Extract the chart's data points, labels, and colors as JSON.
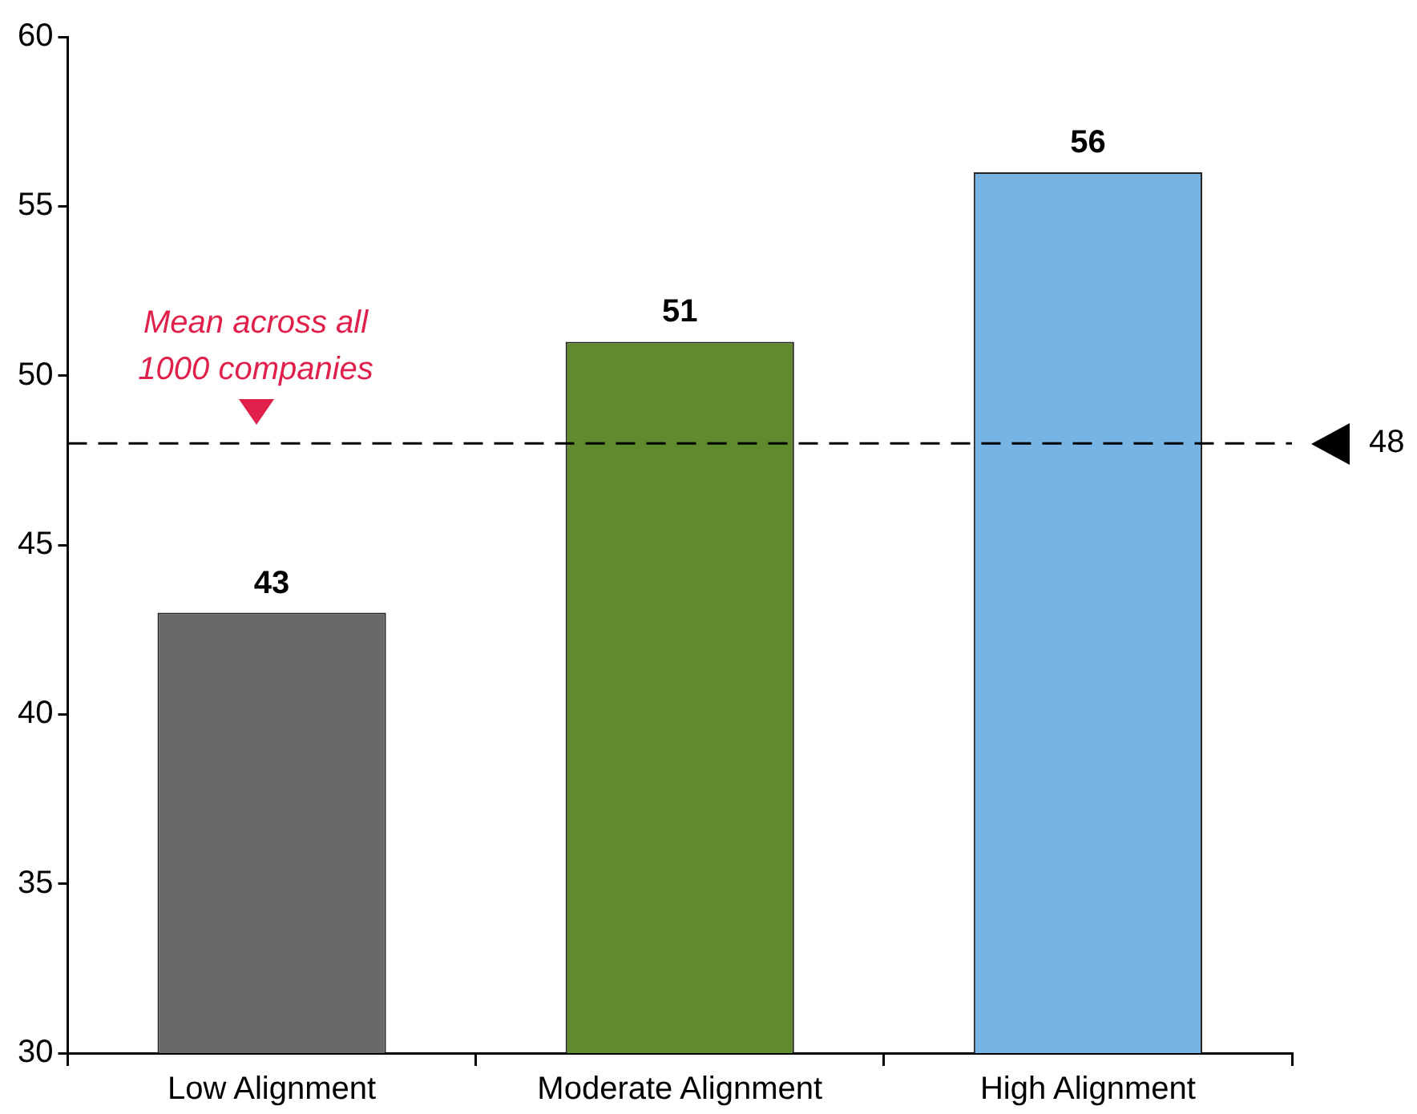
{
  "chart_data": {
    "type": "bar",
    "categories": [
      "Low Alignment",
      "Moderate Alignment",
      "High Alignment"
    ],
    "values": [
      43,
      51,
      56
    ],
    "colors": [
      "#696969",
      "#5f8b2e",
      "#77b3e3"
    ],
    "ylim": [
      30,
      60
    ],
    "yticks": [
      30,
      35,
      40,
      45,
      50,
      55,
      60
    ],
    "grid": false,
    "legend": false,
    "data_labels": true,
    "ref_lines": [
      {
        "axis": "y",
        "value": 48,
        "label": "48",
        "color": "#000000",
        "line_style": "dashed"
      }
    ],
    "annotations": [
      {
        "text": "Mean across all 1000 companies",
        "x": "Low Alignment",
        "y": 48
      }
    ]
  }
}
